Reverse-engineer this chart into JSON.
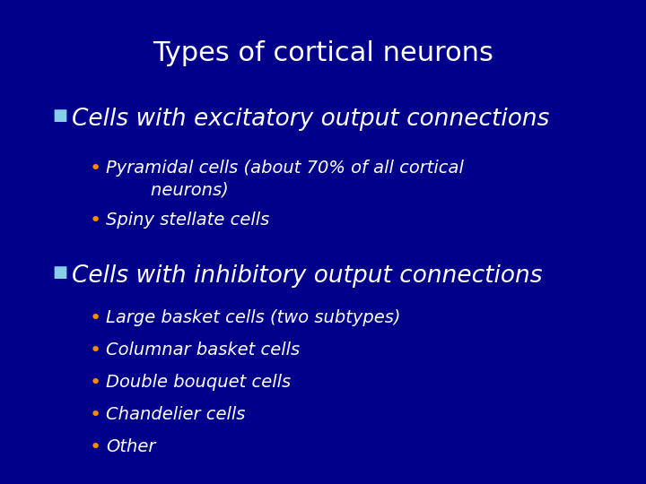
{
  "title": "Types of cortical neurons",
  "title_color": "#FFFFFF",
  "title_fontsize": 22,
  "background_color": "#00008B",
  "section_bullet_color": "#87CEEB",
  "section_text_color": "#FFFFFF",
  "section_fontsize": 19,
  "sub_bullet_color": "#FF8C00",
  "sub_text_color": "#FFFFFF",
  "sub_fontsize": 14,
  "section1_text": "Cells with excitatory output connections",
  "section2_text": "Cells with inhibitory output connections",
  "section1_items": [
    "Pyramidal cells (about 70% of all cortical\n        neurons)",
    "Spiny stellate cells"
  ],
  "section2_items": [
    "Large basket cells (two subtypes)",
    "Columnar basket cells",
    "Double bouquet cells",
    "Chandelier cells",
    "Other"
  ]
}
